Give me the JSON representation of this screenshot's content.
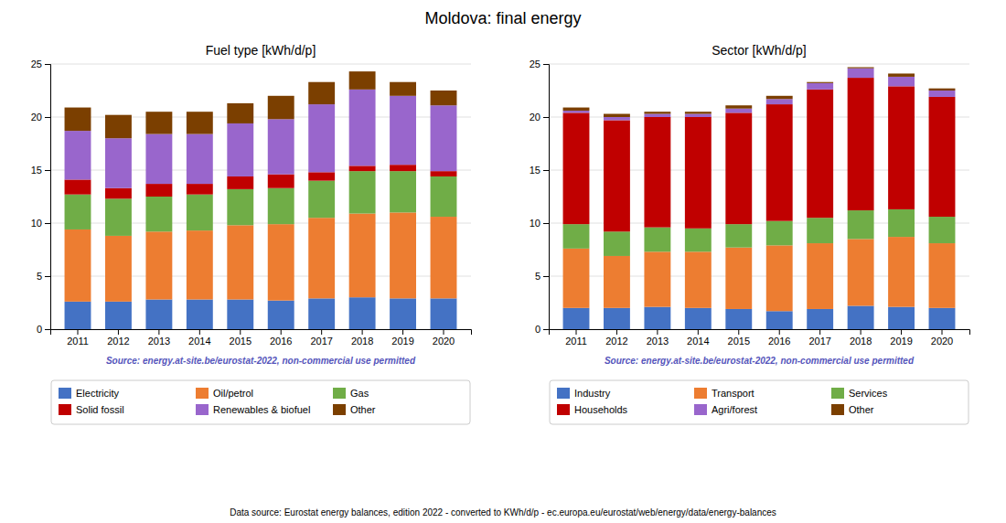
{
  "title": "Moldova: final energy",
  "annotations": [
    "Data source: Eurostat energy balances, edition 2022 - converted to KWh/d/p - ec.europa.eu/eurostat/web/energy/data/energy-balances"
  ],
  "chart_data": [
    {
      "type": "bar",
      "stacked": true,
      "title": "Fuel type [kWh/d/p]",
      "categories": [
        "2011",
        "2012",
        "2013",
        "2014",
        "2015",
        "2016",
        "2017",
        "2018",
        "2019",
        "2020"
      ],
      "series": [
        {
          "name": "Electricity",
          "color": "#4472c4",
          "values": [
            2.6,
            2.6,
            2.8,
            2.8,
            2.8,
            2.7,
            2.9,
            3.0,
            2.9,
            2.9
          ]
        },
        {
          "name": "Oil/petrol",
          "color": "#ed7d31",
          "values": [
            6.8,
            6.2,
            6.4,
            6.5,
            7.0,
            7.2,
            7.6,
            7.9,
            8.1,
            7.7
          ]
        },
        {
          "name": "Gas",
          "color": "#70ad47",
          "values": [
            3.3,
            3.5,
            3.3,
            3.4,
            3.4,
            3.4,
            3.5,
            4.0,
            3.9,
            3.8
          ]
        },
        {
          "name": "Solid fossil",
          "color": "#c00000",
          "values": [
            1.4,
            1.0,
            1.2,
            1.0,
            1.2,
            1.3,
            0.8,
            0.5,
            0.6,
            0.5
          ]
        },
        {
          "name": "Renewables & biofuel",
          "color": "#9966cc",
          "values": [
            4.6,
            4.7,
            4.7,
            4.7,
            5.0,
            5.2,
            6.4,
            7.2,
            6.5,
            6.2
          ]
        },
        {
          "name": "Other",
          "color": "#7b3f00",
          "values": [
            2.2,
            2.2,
            2.1,
            2.1,
            1.9,
            2.2,
            2.1,
            1.7,
            1.3,
            1.4
          ]
        }
      ],
      "ylim": [
        0,
        25
      ],
      "yticks": [
        0,
        5,
        10,
        15,
        20,
        25
      ],
      "grid": true,
      "legend": "bottom",
      "annotations": [
        "Source: energy.at-site.be/eurostat-2022, non-commercial use permitted"
      ]
    },
    {
      "type": "bar",
      "stacked": true,
      "title": "Sector [kWh/d/p]",
      "categories": [
        "2011",
        "2012",
        "2013",
        "2014",
        "2015",
        "2016",
        "2017",
        "2018",
        "2019",
        "2020"
      ],
      "series": [
        {
          "name": "Industry",
          "color": "#4472c4",
          "values": [
            2.0,
            2.0,
            2.1,
            2.0,
            1.9,
            1.7,
            1.9,
            2.2,
            2.1,
            2.0
          ]
        },
        {
          "name": "Transport",
          "color": "#ed7d31",
          "values": [
            5.6,
            4.9,
            5.2,
            5.3,
            5.8,
            6.2,
            6.2,
            6.3,
            6.6,
            6.1
          ]
        },
        {
          "name": "Services",
          "color": "#70ad47",
          "values": [
            2.3,
            2.3,
            2.3,
            2.2,
            2.2,
            2.3,
            2.4,
            2.7,
            2.6,
            2.5
          ]
        },
        {
          "name": "Households",
          "color": "#c00000",
          "values": [
            10.5,
            10.5,
            10.4,
            10.5,
            10.5,
            11.0,
            12.1,
            12.5,
            11.6,
            11.3
          ]
        },
        {
          "name": "Agri/forest",
          "color": "#9966cc",
          "values": [
            0.2,
            0.3,
            0.3,
            0.3,
            0.4,
            0.5,
            0.6,
            0.9,
            0.9,
            0.6
          ]
        },
        {
          "name": "Other",
          "color": "#7b3f00",
          "values": [
            0.3,
            0.3,
            0.2,
            0.2,
            0.3,
            0.3,
            0.1,
            0.1,
            0.3,
            0.2
          ]
        }
      ],
      "ylim": [
        0,
        25
      ],
      "yticks": [
        0,
        5,
        10,
        15,
        20,
        25
      ],
      "grid": true,
      "legend": "bottom",
      "annotations": [
        "Source: energy.at-site.be/eurostat-2022, non-commercial use permitted"
      ]
    }
  ]
}
